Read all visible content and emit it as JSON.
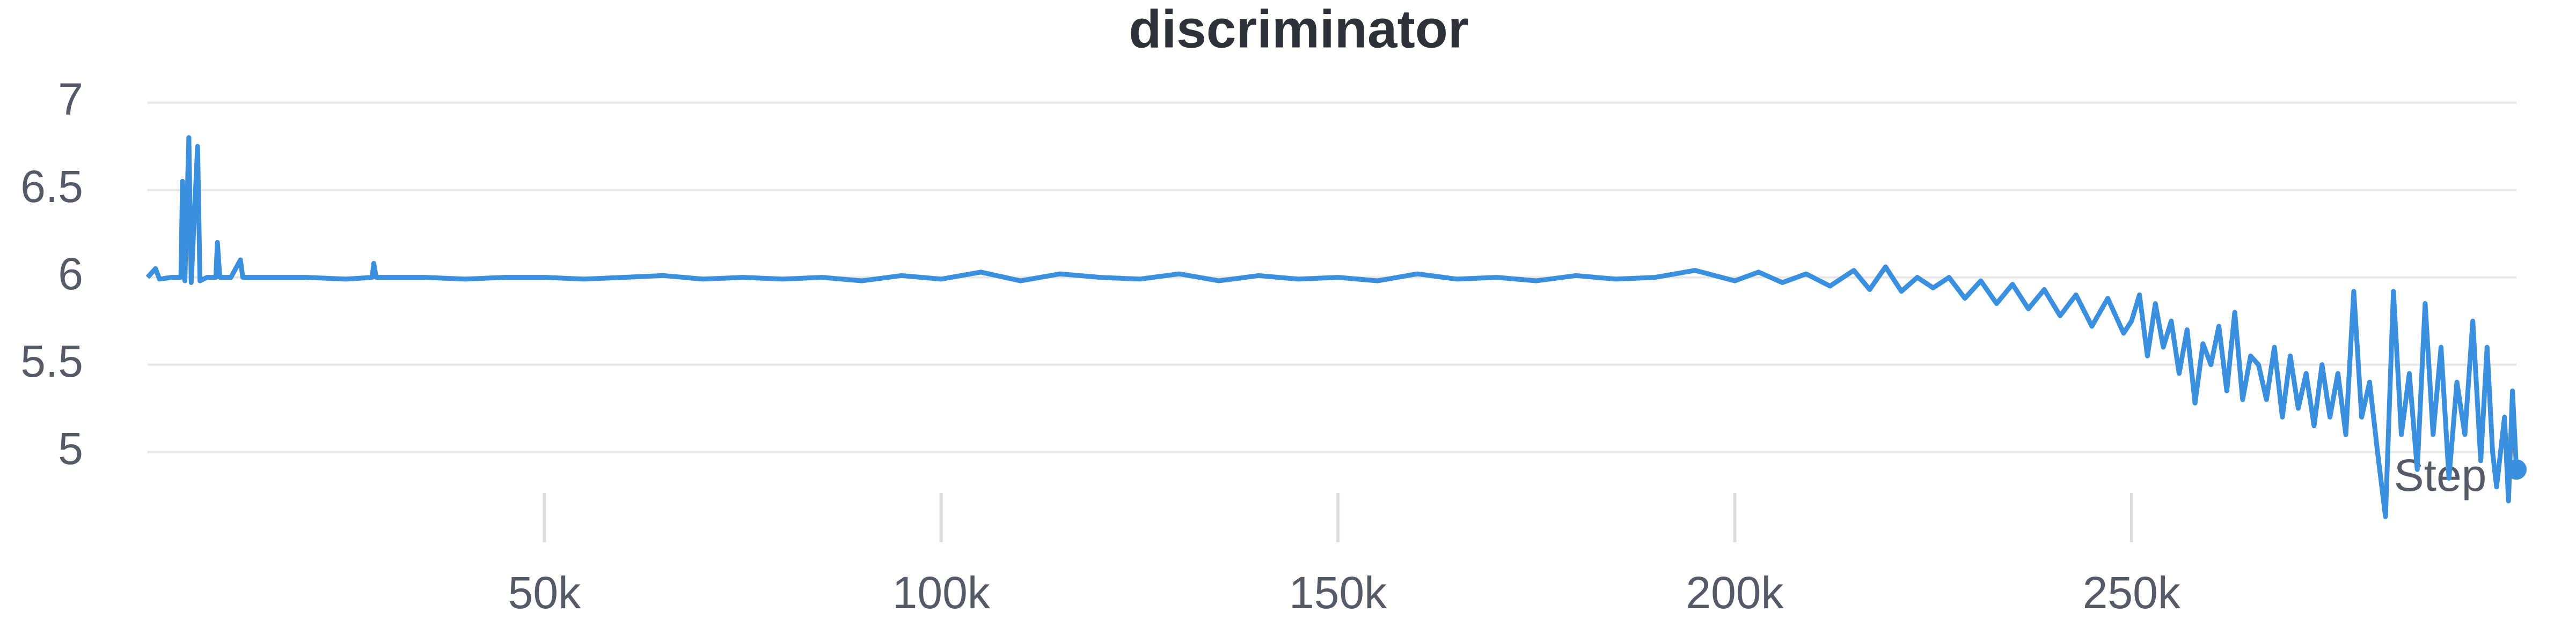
{
  "chart_data": {
    "type": "line",
    "title": "discriminator",
    "x_label": "Step",
    "xlim": [
      0,
      298500
    ],
    "ylim": [
      4.6,
      7.1
    ],
    "xticks": [
      {
        "value": 50000,
        "label": "50k"
      },
      {
        "value": 100000,
        "label": "100k"
      },
      {
        "value": 150000,
        "label": "150k"
      },
      {
        "value": 200000,
        "label": "200k"
      },
      {
        "value": 250000,
        "label": "250k"
      }
    ],
    "yticks": [
      5,
      5.5,
      6,
      6.5,
      7
    ],
    "grid": true,
    "x": [
      0,
      1000,
      1500,
      3000,
      4200,
      4400,
      4700,
      5200,
      5500,
      6300,
      6600,
      7500,
      8600,
      8800,
      9100,
      10500,
      11700,
      12000,
      15000,
      20000,
      25000,
      28300,
      28500,
      28800,
      35000,
      40000,
      45000,
      50000,
      55000,
      60000,
      65000,
      70000,
      75000,
      80000,
      85000,
      90000,
      95000,
      100000,
      105000,
      110000,
      115000,
      120000,
      125000,
      130000,
      135000,
      140000,
      145000,
      150000,
      155000,
      160000,
      165000,
      170000,
      175000,
      180000,
      185000,
      190000,
      195000,
      200000,
      203000,
      206000,
      209000,
      212000,
      215000,
      217000,
      219000,
      221000,
      223000,
      225000,
      227000,
      229000,
      231000,
      233000,
      235000,
      237000,
      239000,
      241000,
      243000,
      245000,
      247000,
      249000,
      250000,
      251000,
      252000,
      253000,
      254000,
      255000,
      256000,
      257000,
      258000,
      259000,
      260000,
      261000,
      262000,
      263000,
      264000,
      265000,
      266000,
      267000,
      268000,
      269000,
      270000,
      271000,
      272000,
      273000,
      274000,
      275000,
      276000,
      277000,
      278000,
      279000,
      280000,
      281000,
      282000,
      283000,
      284000,
      285000,
      286000,
      287000,
      288000,
      289000,
      290000,
      291000,
      292000,
      293000,
      294000,
      294800,
      295500,
      296000,
      297000,
      297500,
      298000,
      298500
    ],
    "series": [
      {
        "color": "#3a8fde",
        "values": [
          6.0,
          6.05,
          5.99,
          6.0,
          6.0,
          6.55,
          5.98,
          6.8,
          5.97,
          6.75,
          5.98,
          6.0,
          6.0,
          6.2,
          6.0,
          6.0,
          6.1,
          6.0,
          6.0,
          6.0,
          5.99,
          6.0,
          6.08,
          6.0,
          6.0,
          5.99,
          6.0,
          6.0,
          5.99,
          6.0,
          6.01,
          5.99,
          6.0,
          5.99,
          6.0,
          5.98,
          6.01,
          5.99,
          6.03,
          5.98,
          6.02,
          6.0,
          5.99,
          6.02,
          5.98,
          6.01,
          5.99,
          6.0,
          5.98,
          6.02,
          5.99,
          6.0,
          5.98,
          6.01,
          5.99,
          6.0,
          6.04,
          5.98,
          6.03,
          5.97,
          6.02,
          5.95,
          6.04,
          5.93,
          6.06,
          5.92,
          6.0,
          5.94,
          6.0,
          5.88,
          5.98,
          5.85,
          5.96,
          5.82,
          5.93,
          5.78,
          5.9,
          5.72,
          5.88,
          5.68,
          5.75,
          5.9,
          5.55,
          5.85,
          5.6,
          5.75,
          5.45,
          5.7,
          5.28,
          5.62,
          5.5,
          5.72,
          5.35,
          5.8,
          5.3,
          5.55,
          5.5,
          5.3,
          5.6,
          5.2,
          5.55,
          5.25,
          5.45,
          5.15,
          5.5,
          5.2,
          5.45,
          5.1,
          5.92,
          5.2,
          5.4,
          5.0,
          4.63,
          5.92,
          5.1,
          5.45,
          4.9,
          5.85,
          5.1,
          5.6,
          4.85,
          5.4,
          5.1,
          5.75,
          4.95,
          5.6,
          5.0,
          4.8,
          5.2,
          4.72,
          5.35,
          4.9
        ]
      }
    ]
  }
}
